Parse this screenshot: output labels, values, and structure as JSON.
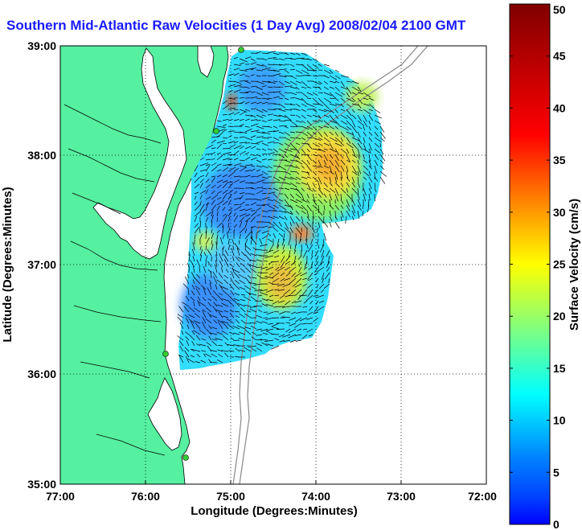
{
  "title": "Southern Mid-Atlantic Raw Velocities (1 Day Avg) 2008/02/04 2100 GMT",
  "x_axis": {
    "label": "Longitude (Degrees:Minutes)",
    "ticks": [
      "77:00",
      "76:00",
      "75:00",
      "74:00",
      "73:00",
      "72:00"
    ]
  },
  "y_axis": {
    "label": "Latitude (Degrees:Minutes)",
    "ticks": [
      "39:00",
      "38:00",
      "37:00",
      "36:00",
      "35:00"
    ]
  },
  "colorbar": {
    "label": "Surface Velocity (cm/s)",
    "min": 0,
    "max": 50,
    "ticks": [
      "0",
      "5",
      "10",
      "15",
      "20",
      "25",
      "30",
      "35",
      "40",
      "45",
      "50"
    ],
    "colormap": "jet"
  },
  "colors": {
    "title": "#1a1aff",
    "land": "#55f0a0",
    "station": "#33cc33"
  },
  "grid": true
}
